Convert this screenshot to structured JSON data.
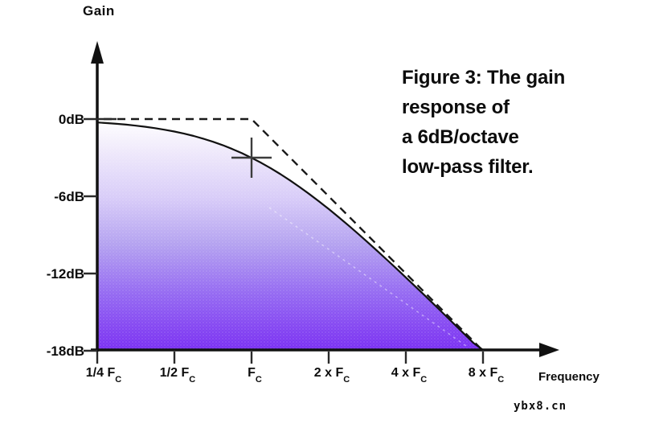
{
  "figure": {
    "caption_lines": [
      "Figure 3: The gain",
      "response of",
      "a 6dB/octave",
      "low-pass filter."
    ]
  },
  "y_axis": {
    "title": "Gain",
    "labels": [
      "0dB",
      "-6dB",
      "-12dB",
      "-18dB"
    ]
  },
  "x_axis": {
    "title": "Frequency",
    "ticks": [
      {
        "prefix": "1/4 ",
        "f": "F",
        "sub": "C"
      },
      {
        "prefix": "1/2 ",
        "f": "F",
        "sub": "C"
      },
      {
        "prefix": "",
        "f": "F",
        "sub": "C"
      },
      {
        "prefix": "2 x ",
        "f": "F",
        "sub": "C"
      },
      {
        "prefix": "4 x ",
        "f": "F",
        "sub": "C"
      },
      {
        "prefix": "8 x ",
        "f": "F",
        "sub": "C"
      }
    ]
  },
  "watermark": "ybx8.cn",
  "colors": {
    "axis": "#111111",
    "curve": "#111111",
    "ideal_dashed": "#1a1a1a",
    "crosshair": "#3c3c3c",
    "fill_top": "#ffffff",
    "fill_upper": "#efe9fb",
    "fill_mid_light": "#d8ccf8",
    "fill_mid": "#b4a2f0",
    "fill_lower": "#9468f2",
    "fill_bottom": "#7a2ff2",
    "text": "#0c0c0c"
  },
  "chart_data": {
    "type": "area",
    "title": "Figure 3: The gain response of a 6dB/octave low-pass filter.",
    "xlabel": "Frequency",
    "ylabel": "Gain",
    "x_scale": "log2 (octaves relative to Fc)",
    "x_tick_labels": [
      "1/4 Fc",
      "1/2 Fc",
      "Fc",
      "2 x Fc",
      "4 x Fc",
      "8 x Fc"
    ],
    "x_tick_octaves": [
      -2,
      -1,
      0,
      1,
      2,
      3
    ],
    "y_tick_labels": [
      "0dB",
      "-6dB",
      "-12dB",
      "-18dB"
    ],
    "y_tick_values": [
      0,
      -6,
      -12,
      -18
    ],
    "ylim": [
      -18,
      0
    ],
    "grid": false,
    "legend": "none",
    "series": [
      {
        "name": "actual gain response (first-order 6dB/octave low-pass)",
        "style": "solid curve with purple vertical-gradient area fill",
        "formula_dB": "-10*log10(1+(f/Fc)^2)",
        "x": [
          "1/4 Fc",
          "1/2 Fc",
          "Fc",
          "2 x Fc",
          "4 x Fc",
          "8 x Fc"
        ],
        "gain_dB": [
          -0.26,
          -0.97,
          -3.01,
          -6.99,
          -12.3,
          -18.13
        ]
      },
      {
        "name": "ideal piecewise-linear response",
        "style": "black dashed line",
        "points_x": [
          "1/4 Fc",
          "Fc",
          "8 x Fc"
        ],
        "points_gain_dB": [
          0,
          0,
          -18
        ]
      }
    ],
    "marker": {
      "name": "crosshair at cutoff",
      "x": "Fc",
      "gain_dB": -3
    },
    "slope_after_cutoff_dB_per_octave": -6
  }
}
